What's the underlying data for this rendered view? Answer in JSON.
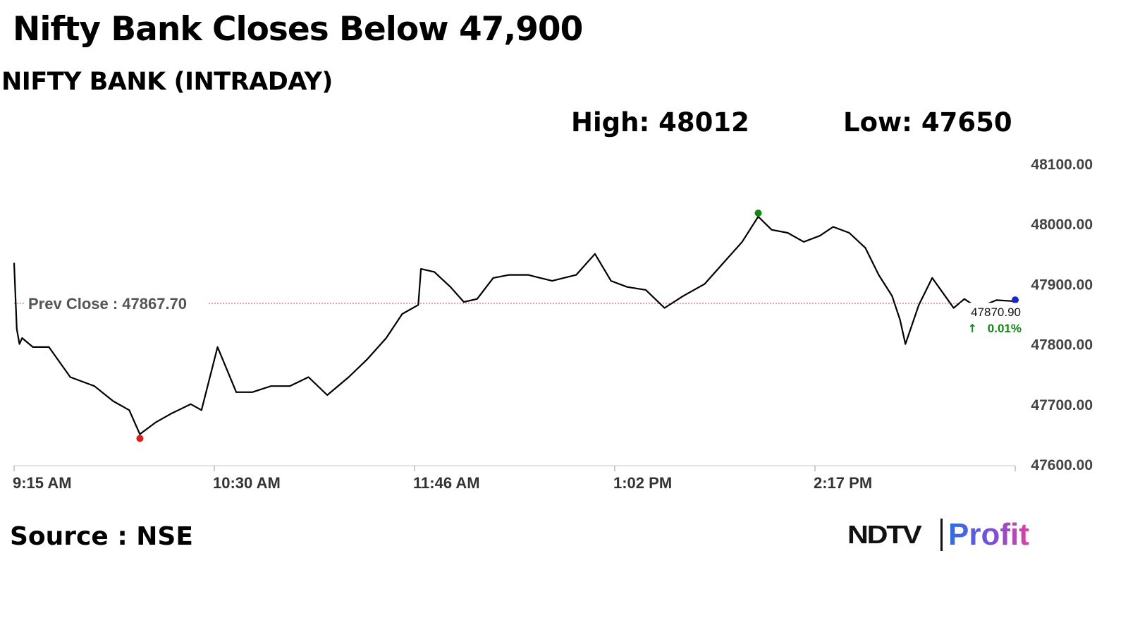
{
  "headline": "Nifty Bank Closes Below 47,900",
  "subtitle": "NIFTY BANK (INTRADAY)",
  "stats": {
    "high": "High: 48012",
    "low": "Low: 47650"
  },
  "source": "Source : NSE",
  "logo": {
    "left": "NDTV",
    "right": "Profit"
  },
  "colors": {
    "line": "#000000",
    "prev_close_line": "#d9534f",
    "low_marker": "#e01e1e",
    "high_marker": "#118811",
    "last_marker": "#1a24c8",
    "change_up": "#118811"
  },
  "chart_data": {
    "type": "line",
    "title": "NIFTY BANK (INTRADAY)",
    "x_tick_labels": [
      "9:15 AM",
      "10:30 AM",
      "11:46 AM",
      "1:02 PM",
      "2:17 PM"
    ],
    "y_tick_labels": [
      "48100.00",
      "48000.00",
      "47900.00",
      "47800.00",
      "47700.00",
      "47600.00"
    ],
    "ylim": [
      47600,
      48100
    ],
    "grid": false,
    "prev_close": {
      "label": "Prev Close : 47867.70",
      "value": 47867.7
    },
    "last_value": {
      "label": "47870.90",
      "value": 47870.9
    },
    "change": {
      "label": "0.01%",
      "direction": "up"
    },
    "high": 48012,
    "low": 47650,
    "series": [
      {
        "x": [
          "9:15",
          "9:16",
          "9:17",
          "9:18",
          "9:22",
          "9:28",
          "9:36",
          "9:45",
          "9:52",
          "9:58",
          "10:02",
          "10:08",
          "10:14",
          "10:21",
          "10:25",
          "10:31",
          "10:38",
          "10:44",
          "10:51",
          "10:58",
          "11:05",
          "11:12",
          "11:20",
          "11:27",
          "11:34",
          "11:40",
          "11:46",
          "11:47",
          "11:52",
          "11:58",
          "12:03",
          "12:08",
          "12:14",
          "12:20",
          "12:27",
          "12:36",
          "12:45",
          "12:52",
          "12:58",
          "13:04",
          "13:11",
          "13:18",
          "13:25",
          "13:33",
          "13:40",
          "13:47",
          "13:53",
          "13:58",
          "14:04",
          "14:10",
          "14:16",
          "14:21",
          "14:27",
          "14:33",
          "14:38",
          "14:43",
          "14:46",
          "14:48",
          "14:53",
          "14:58",
          "15:02",
          "15:06",
          "15:10",
          "15:15",
          "15:22",
          "15:26",
          "15:29"
        ],
        "values": [
          47935,
          47825,
          47800,
          47810,
          47795,
          47795,
          47745,
          47730,
          47705,
          47690,
          47650,
          47670,
          47685,
          47700,
          47690,
          47795,
          47720,
          47720,
          47730,
          47730,
          47745,
          47715,
          47745,
          47775,
          47810,
          47850,
          47865,
          47925,
          47920,
          47895,
          47870,
          47875,
          47910,
          47915,
          47915,
          47905,
          47915,
          47950,
          47905,
          47895,
          47890,
          47860,
          47880,
          47900,
          47935,
          47970,
          48012,
          47990,
          47985,
          47970,
          47980,
          47995,
          47985,
          47960,
          47915,
          47880,
          47840,
          47800,
          47865,
          47910,
          47885,
          47860,
          47875,
          47860,
          47873,
          47872,
          47871
        ]
      }
    ]
  }
}
